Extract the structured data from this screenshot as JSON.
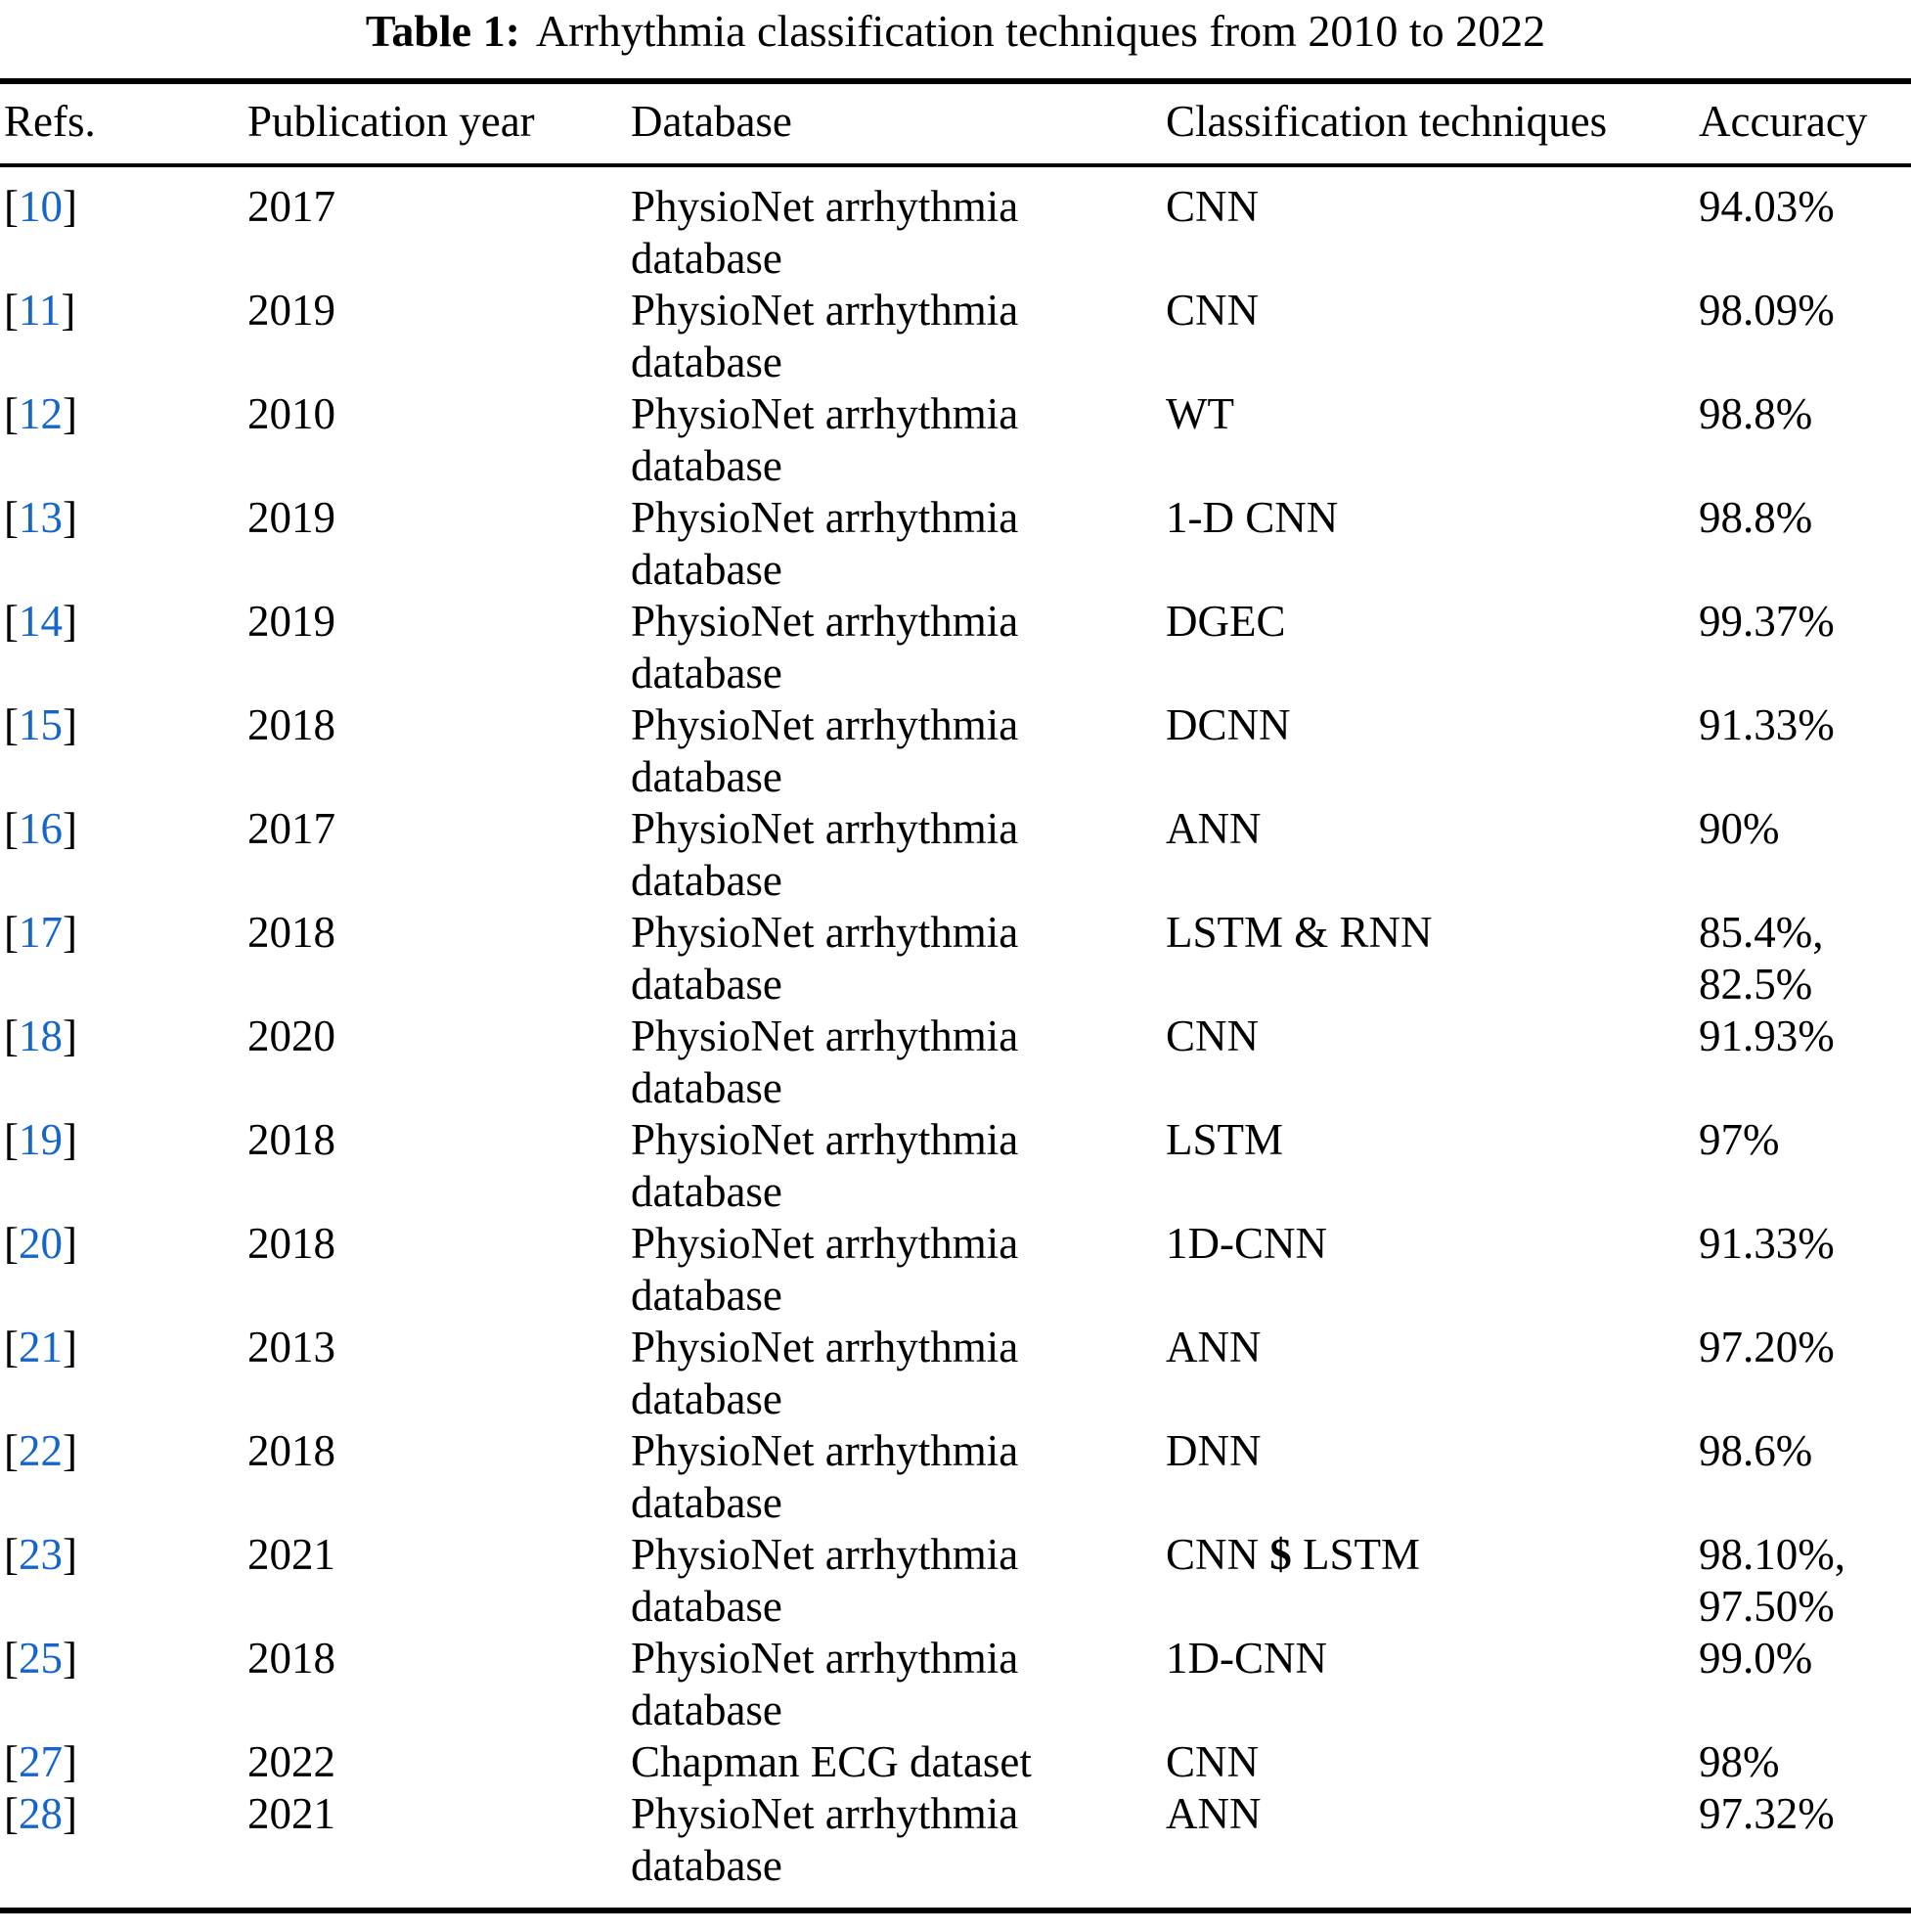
{
  "caption": {
    "label": "Table 1:",
    "text": "Arrhythmia classification techniques from 2010 to 2022"
  },
  "colors": {
    "ref_blue": "#1665C8",
    "text": "#000000",
    "rule": "#000000",
    "background": "#FFFFFF"
  },
  "table": {
    "columns": [
      "Refs.",
      "Publication year",
      "Database",
      "Classification techniques",
      "Accuracy"
    ],
    "bracket_open": "[",
    "bracket_close": "]",
    "rows": [
      {
        "ref": "10",
        "year": "2017",
        "database": "PhysioNet arrhythmia database",
        "technique": "CNN",
        "accuracy": "94.03%"
      },
      {
        "ref": "11",
        "year": "2019",
        "database": "PhysioNet arrhythmia database",
        "technique": "CNN",
        "accuracy": "98.09%"
      },
      {
        "ref": "12",
        "year": "2010",
        "database": "PhysioNet arrhythmia database",
        "technique": "WT",
        "accuracy": "98.8%"
      },
      {
        "ref": "13",
        "year": "2019",
        "database": "PhysioNet arrhythmia database",
        "technique": "1-D CNN",
        "accuracy": "98.8%"
      },
      {
        "ref": "14",
        "year": "2019",
        "database": "PhysioNet arrhythmia database",
        "technique": "DGEC",
        "accuracy": "99.37%"
      },
      {
        "ref": "15",
        "year": "2018",
        "database": "PhysioNet arrhythmia database",
        "technique": "DCNN",
        "accuracy": "91.33%"
      },
      {
        "ref": "16",
        "year": "2017",
        "database": "PhysioNet arrhythmia database",
        "technique": "ANN",
        "accuracy": "90%"
      },
      {
        "ref": "17",
        "year": "2018",
        "database": "PhysioNet arrhythmia database",
        "technique": "LSTM & RNN",
        "accuracy": "85.4%, 82.5%"
      },
      {
        "ref": "18",
        "year": "2020",
        "database": "PhysioNet arrhythmia database",
        "technique": "CNN",
        "accuracy": "91.93%"
      },
      {
        "ref": "19",
        "year": "2018",
        "database": "PhysioNet arrhythmia database",
        "technique": "LSTM",
        "accuracy": "97%"
      },
      {
        "ref": "20",
        "year": "2018",
        "database": "PhysioNet arrhythmia database",
        "technique": "1D-CNN",
        "accuracy": "91.33%"
      },
      {
        "ref": "21",
        "year": "2013",
        "database": "PhysioNet arrhythmia database",
        "technique": "ANN",
        "accuracy": "97.20%"
      },
      {
        "ref": "22",
        "year": "2018",
        "database": "PhysioNet arrhythmia database",
        "technique": "DNN",
        "accuracy": "98.6%"
      },
      {
        "ref": "23",
        "year": "2021",
        "database": "PhysioNet arrhythmia database",
        "technique": "CNN $ LSTM",
        "accuracy": "98.10%, 97.50%"
      },
      {
        "ref": "25",
        "year": "2018",
        "database": "PhysioNet arrhythmia database",
        "technique": "1D-CNN",
        "accuracy": "99.0%"
      },
      {
        "ref": "27",
        "year": "2022",
        "database": "Chapman ECG dataset",
        "technique": "CNN",
        "accuracy": "98%"
      },
      {
        "ref": "28",
        "year": "2021",
        "database": "PhysioNet arrhythmia database",
        "technique": "ANN",
        "accuracy": "97.32%"
      }
    ]
  }
}
